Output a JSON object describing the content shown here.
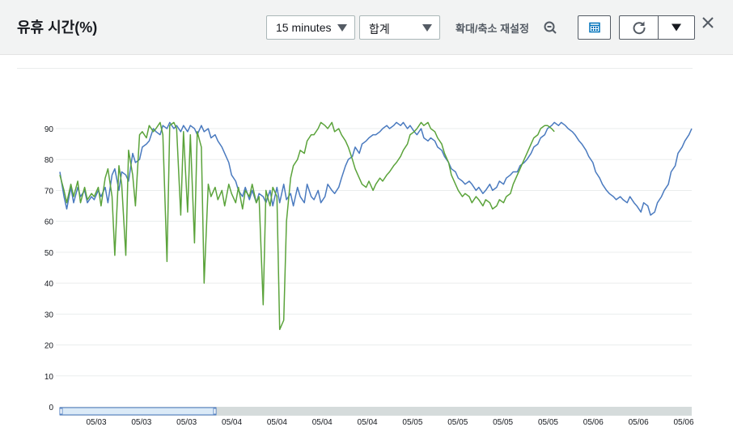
{
  "header": {
    "title": "유휴 시간(%)",
    "period_label": "15 minutes",
    "stat_label": "합계",
    "zoom_reset_label": "확대/축소 재설정"
  },
  "icons": {
    "zoom_reset": "zoom-out-icon",
    "calendar": "calendar-icon",
    "refresh": "refresh-icon",
    "dropdown": "caret-down-icon",
    "close": "close-icon"
  },
  "colors": {
    "series_blue": "#4a7abf",
    "series_green": "#5ba33b",
    "header_bg": "#f2f3f3",
    "grid": "#eaeded"
  },
  "chart_data": {
    "type": "line",
    "ylim": [
      0,
      95
    ],
    "yticks": [
      0,
      10,
      20,
      30,
      40,
      50,
      60,
      70,
      80,
      90
    ],
    "xtick_labels": [
      "05/03",
      "05/03",
      "05/03",
      "05/04",
      "05/04",
      "05/04",
      "05/04",
      "05/05",
      "05/05",
      "05/05",
      "05/05",
      "05/06",
      "05/06",
      "05/06"
    ],
    "grid": true,
    "series": [
      {
        "color": "#4a7abf",
        "points": [
          [
            0,
            76
          ],
          [
            3,
            68
          ],
          [
            5,
            64
          ],
          [
            8,
            71
          ],
          [
            10,
            66
          ],
          [
            13,
            71
          ],
          [
            15,
            68
          ],
          [
            18,
            70
          ],
          [
            20,
            66
          ],
          [
            23,
            68
          ],
          [
            25,
            67
          ],
          [
            28,
            70
          ],
          [
            30,
            68
          ],
          [
            33,
            71
          ],
          [
            35,
            66
          ],
          [
            38,
            75
          ],
          [
            40,
            77
          ],
          [
            43,
            70
          ],
          [
            45,
            76
          ],
          [
            48,
            75
          ],
          [
            50,
            73
          ],
          [
            53,
            82
          ],
          [
            55,
            79
          ],
          [
            58,
            80
          ],
          [
            60,
            84
          ],
          [
            63,
            85
          ],
          [
            65,
            86
          ],
          [
            68,
            90
          ],
          [
            70,
            89
          ],
          [
            73,
            88
          ],
          [
            75,
            91
          ],
          [
            78,
            90
          ],
          [
            80,
            92
          ],
          [
            83,
            90
          ],
          [
            85,
            91
          ],
          [
            88,
            89
          ],
          [
            90,
            91
          ],
          [
            93,
            89
          ],
          [
            95,
            91
          ],
          [
            98,
            90
          ],
          [
            100,
            88
          ],
          [
            103,
            91
          ],
          [
            105,
            89
          ],
          [
            108,
            90
          ],
          [
            110,
            87
          ],
          [
            113,
            88
          ],
          [
            115,
            86
          ],
          [
            118,
            84
          ],
          [
            120,
            82
          ],
          [
            123,
            79
          ],
          [
            125,
            75
          ],
          [
            128,
            73
          ],
          [
            130,
            70
          ],
          [
            133,
            68
          ],
          [
            135,
            71
          ],
          [
            138,
            67
          ],
          [
            140,
            70
          ],
          [
            143,
            66
          ],
          [
            145,
            69
          ],
          [
            148,
            68
          ],
          [
            150,
            66
          ],
          [
            153,
            70
          ],
          [
            155,
            65
          ],
          [
            158,
            71
          ],
          [
            160,
            66
          ],
          [
            163,
            72
          ],
          [
            165,
            67
          ],
          [
            168,
            69
          ],
          [
            170,
            65
          ],
          [
            173,
            71
          ],
          [
            175,
            68
          ],
          [
            178,
            66
          ],
          [
            180,
            72
          ],
          [
            183,
            68
          ],
          [
            185,
            67
          ],
          [
            188,
            70
          ],
          [
            190,
            66
          ],
          [
            193,
            68
          ],
          [
            195,
            72
          ],
          [
            198,
            70
          ],
          [
            200,
            69
          ],
          [
            203,
            71
          ],
          [
            205,
            74
          ],
          [
            208,
            78
          ],
          [
            210,
            80
          ],
          [
            213,
            81
          ],
          [
            215,
            84
          ],
          [
            218,
            82
          ],
          [
            220,
            85
          ],
          [
            223,
            86
          ],
          [
            225,
            87
          ],
          [
            228,
            88
          ],
          [
            230,
            88
          ],
          [
            233,
            89
          ],
          [
            235,
            90
          ],
          [
            238,
            91
          ],
          [
            240,
            90
          ],
          [
            243,
            91
          ],
          [
            245,
            92
          ],
          [
            248,
            91
          ],
          [
            250,
            92
          ],
          [
            253,
            90
          ],
          [
            255,
            91
          ],
          [
            258,
            89
          ],
          [
            260,
            88
          ],
          [
            263,
            90
          ],
          [
            265,
            87
          ],
          [
            268,
            86
          ],
          [
            270,
            87
          ],
          [
            273,
            86
          ],
          [
            275,
            84
          ],
          [
            278,
            83
          ],
          [
            280,
            81
          ],
          [
            283,
            79
          ],
          [
            285,
            77
          ],
          [
            288,
            76
          ],
          [
            290,
            74
          ],
          [
            293,
            73
          ],
          [
            295,
            72
          ],
          [
            298,
            73
          ],
          [
            300,
            72
          ],
          [
            303,
            70
          ],
          [
            305,
            71
          ],
          [
            308,
            69
          ],
          [
            310,
            70
          ],
          [
            313,
            72
          ],
          [
            315,
            70
          ],
          [
            318,
            71
          ],
          [
            320,
            73
          ],
          [
            323,
            72
          ],
          [
            325,
            74
          ],
          [
            328,
            75
          ],
          [
            330,
            76
          ],
          [
            333,
            76
          ],
          [
            335,
            78
          ],
          [
            338,
            79
          ],
          [
            340,
            80
          ],
          [
            343,
            82
          ],
          [
            345,
            84
          ],
          [
            348,
            85
          ],
          [
            350,
            87
          ],
          [
            353,
            88
          ],
          [
            355,
            90
          ],
          [
            358,
            91
          ],
          [
            360,
            92
          ],
          [
            363,
            91
          ],
          [
            365,
            92
          ],
          [
            368,
            91
          ],
          [
            370,
            90
          ],
          [
            373,
            89
          ],
          [
            375,
            88
          ],
          [
            378,
            86
          ],
          [
            380,
            85
          ],
          [
            383,
            83
          ],
          [
            385,
            81
          ],
          [
            388,
            79
          ],
          [
            390,
            76
          ],
          [
            393,
            74
          ],
          [
            395,
            72
          ],
          [
            398,
            70
          ],
          [
            400,
            69
          ],
          [
            403,
            68
          ],
          [
            405,
            67
          ],
          [
            408,
            68
          ],
          [
            410,
            67
          ],
          [
            413,
            66
          ],
          [
            415,
            68
          ],
          [
            418,
            66
          ],
          [
            420,
            65
          ],
          [
            423,
            63
          ],
          [
            425,
            66
          ],
          [
            428,
            65
          ],
          [
            430,
            62
          ],
          [
            433,
            63
          ],
          [
            435,
            66
          ],
          [
            438,
            68
          ],
          [
            440,
            70
          ],
          [
            443,
            72
          ],
          [
            445,
            76
          ],
          [
            448,
            78
          ],
          [
            450,
            82
          ],
          [
            453,
            84
          ],
          [
            455,
            86
          ],
          [
            458,
            88
          ],
          [
            460,
            90
          ]
        ]
      },
      {
        "color": "#5ba33b",
        "points": [
          [
            0,
            75
          ],
          [
            3,
            70
          ],
          [
            5,
            66
          ],
          [
            8,
            72
          ],
          [
            10,
            68
          ],
          [
            13,
            73
          ],
          [
            15,
            66
          ],
          [
            18,
            71
          ],
          [
            20,
            67
          ],
          [
            23,
            69
          ],
          [
            25,
            68
          ],
          [
            28,
            71
          ],
          [
            30,
            65
          ],
          [
            33,
            74
          ],
          [
            35,
            77
          ],
          [
            38,
            68
          ],
          [
            40,
            49
          ],
          [
            43,
            78
          ],
          [
            45,
            72
          ],
          [
            48,
            49
          ],
          [
            50,
            83
          ],
          [
            53,
            75
          ],
          [
            55,
            65
          ],
          [
            58,
            88
          ],
          [
            60,
            89
          ],
          [
            63,
            87
          ],
          [
            65,
            91
          ],
          [
            68,
            89
          ],
          [
            70,
            90
          ],
          [
            73,
            92
          ],
          [
            75,
            88
          ],
          [
            78,
            47
          ],
          [
            80,
            91
          ],
          [
            83,
            92
          ],
          [
            85,
            90
          ],
          [
            88,
            62
          ],
          [
            90,
            89
          ],
          [
            93,
            63
          ],
          [
            95,
            88
          ],
          [
            98,
            53
          ],
          [
            100,
            89
          ],
          [
            103,
            84
          ],
          [
            105,
            40
          ],
          [
            108,
            72
          ],
          [
            110,
            68
          ],
          [
            113,
            71
          ],
          [
            115,
            67
          ],
          [
            118,
            70
          ],
          [
            120,
            65
          ],
          [
            123,
            72
          ],
          [
            125,
            69
          ],
          [
            128,
            66
          ],
          [
            130,
            71
          ],
          [
            133,
            64
          ],
          [
            135,
            70
          ],
          [
            138,
            68
          ],
          [
            140,
            72
          ],
          [
            143,
            66
          ],
          [
            145,
            68
          ],
          [
            148,
            33
          ],
          [
            150,
            70
          ],
          [
            153,
            65
          ],
          [
            155,
            71
          ],
          [
            158,
            68
          ],
          [
            160,
            25
          ],
          [
            163,
            28
          ],
          [
            165,
            60
          ],
          [
            168,
            74
          ],
          [
            170,
            78
          ],
          [
            173,
            80
          ],
          [
            175,
            83
          ],
          [
            178,
            82
          ],
          [
            180,
            86
          ],
          [
            183,
            88
          ],
          [
            185,
            88
          ],
          [
            188,
            90
          ],
          [
            190,
            92
          ],
          [
            193,
            91
          ],
          [
            195,
            90
          ],
          [
            198,
            92
          ],
          [
            200,
            89
          ],
          [
            203,
            90
          ],
          [
            205,
            88
          ],
          [
            208,
            86
          ],
          [
            210,
            84
          ],
          [
            213,
            80
          ],
          [
            215,
            77
          ],
          [
            218,
            74
          ],
          [
            220,
            72
          ],
          [
            223,
            71
          ],
          [
            225,
            73
          ],
          [
            228,
            70
          ],
          [
            230,
            72
          ],
          [
            233,
            74
          ],
          [
            235,
            73
          ],
          [
            238,
            75
          ],
          [
            240,
            76
          ],
          [
            243,
            78
          ],
          [
            245,
            79
          ],
          [
            248,
            81
          ],
          [
            250,
            83
          ],
          [
            253,
            85
          ],
          [
            255,
            88
          ],
          [
            258,
            89
          ],
          [
            260,
            90
          ],
          [
            263,
            92
          ],
          [
            265,
            91
          ],
          [
            268,
            92
          ],
          [
            270,
            90
          ],
          [
            273,
            89
          ],
          [
            275,
            87
          ],
          [
            278,
            85
          ],
          [
            280,
            82
          ],
          [
            283,
            79
          ],
          [
            285,
            75
          ],
          [
            288,
            72
          ],
          [
            290,
            70
          ],
          [
            293,
            68
          ],
          [
            295,
            69
          ],
          [
            298,
            68
          ],
          [
            300,
            66
          ],
          [
            303,
            68
          ],
          [
            305,
            67
          ],
          [
            308,
            65
          ],
          [
            310,
            67
          ],
          [
            313,
            66
          ],
          [
            315,
            64
          ],
          [
            318,
            65
          ],
          [
            320,
            67
          ],
          [
            323,
            66
          ],
          [
            325,
            68
          ],
          [
            328,
            69
          ],
          [
            330,
            72
          ],
          [
            333,
            75
          ],
          [
            335,
            77
          ],
          [
            338,
            80
          ],
          [
            340,
            82
          ],
          [
            343,
            85
          ],
          [
            345,
            87
          ],
          [
            348,
            88
          ],
          [
            350,
            90
          ],
          [
            353,
            91
          ],
          [
            355,
            91
          ],
          [
            358,
            90
          ],
          [
            360,
            89
          ]
        ]
      }
    ]
  }
}
